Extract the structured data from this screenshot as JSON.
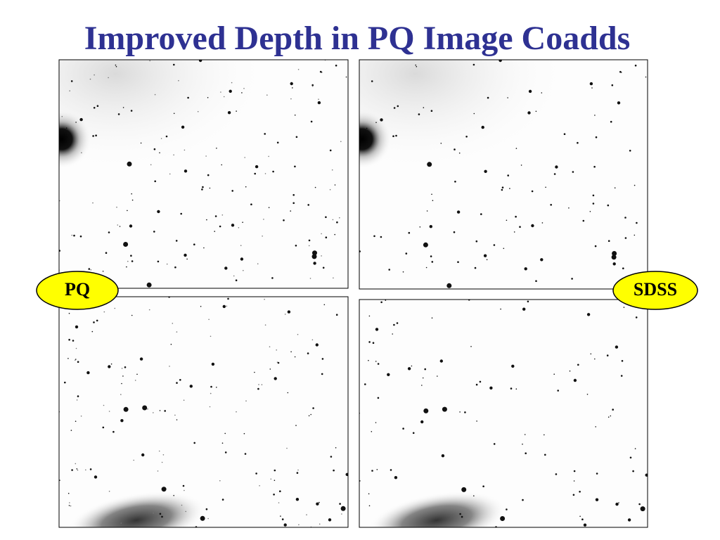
{
  "header": {
    "title": "Improved Depth in PQ Image Coadds"
  },
  "labels": {
    "left": "PQ",
    "right": "SDSS"
  }
}
